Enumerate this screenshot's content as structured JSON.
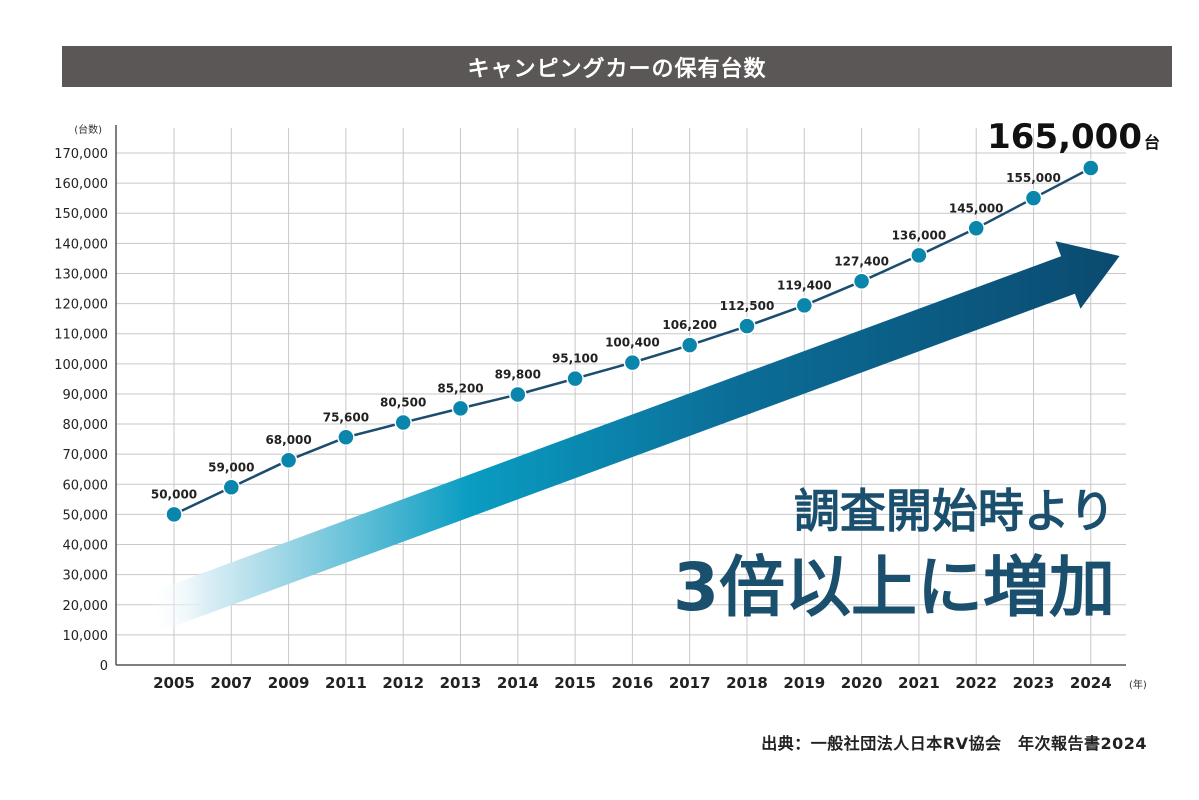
{
  "title": "キャンピングカーの保有台数",
  "source": "出典：一般社団法人日本RV協会　年次報告書2024",
  "chart_data": {
    "type": "line",
    "title": "キャンピングカーの保有台数",
    "ylabel": "(台数)",
    "xlabel": "(年)",
    "categories": [
      "2005",
      "2007",
      "2009",
      "2011",
      "2012",
      "2013",
      "2014",
      "2015",
      "2016",
      "2017",
      "2018",
      "2019",
      "2020",
      "2021",
      "2022",
      "2023",
      "2024"
    ],
    "series": [
      {
        "values": [
          50000,
          59000,
          68000,
          75600,
          80500,
          85200,
          89800,
          95100,
          100400,
          106200,
          112500,
          119400,
          127400,
          136000,
          145000,
          155000,
          165000
        ],
        "labels": [
          "50,000",
          "59,000",
          "68,000",
          "75,600",
          "80,500",
          "85,200",
          "89,800",
          "95,100",
          "100,400",
          "106,200",
          "112,500",
          "119,400",
          "127,400",
          "136,000",
          "145,000",
          "155,000",
          ""
        ]
      }
    ],
    "yticks": [
      "0",
      "10,000",
      "20,000",
      "30,000",
      "40,000",
      "50,000",
      "60,000",
      "70,000",
      "80,000",
      "90,000",
      "100,000",
      "110,000",
      "120,000",
      "130,000",
      "140,000",
      "150,000",
      "160,000",
      "170,000"
    ],
    "ylim": [
      0,
      175000
    ],
    "grid": true,
    "highlight_value": "165,000",
    "highlight_unit": "台",
    "annotation_line1": "調査開始時より",
    "annotation_line2": "3倍以上に増加",
    "colors": {
      "line": "#1c4d6e",
      "marker": "#0a86ad",
      "arrow_dark": "#0b4a6f",
      "arrow_mid": "#0a8fb5",
      "annotation": "#1b4f6e",
      "grid": "#c8c8c8"
    }
  }
}
